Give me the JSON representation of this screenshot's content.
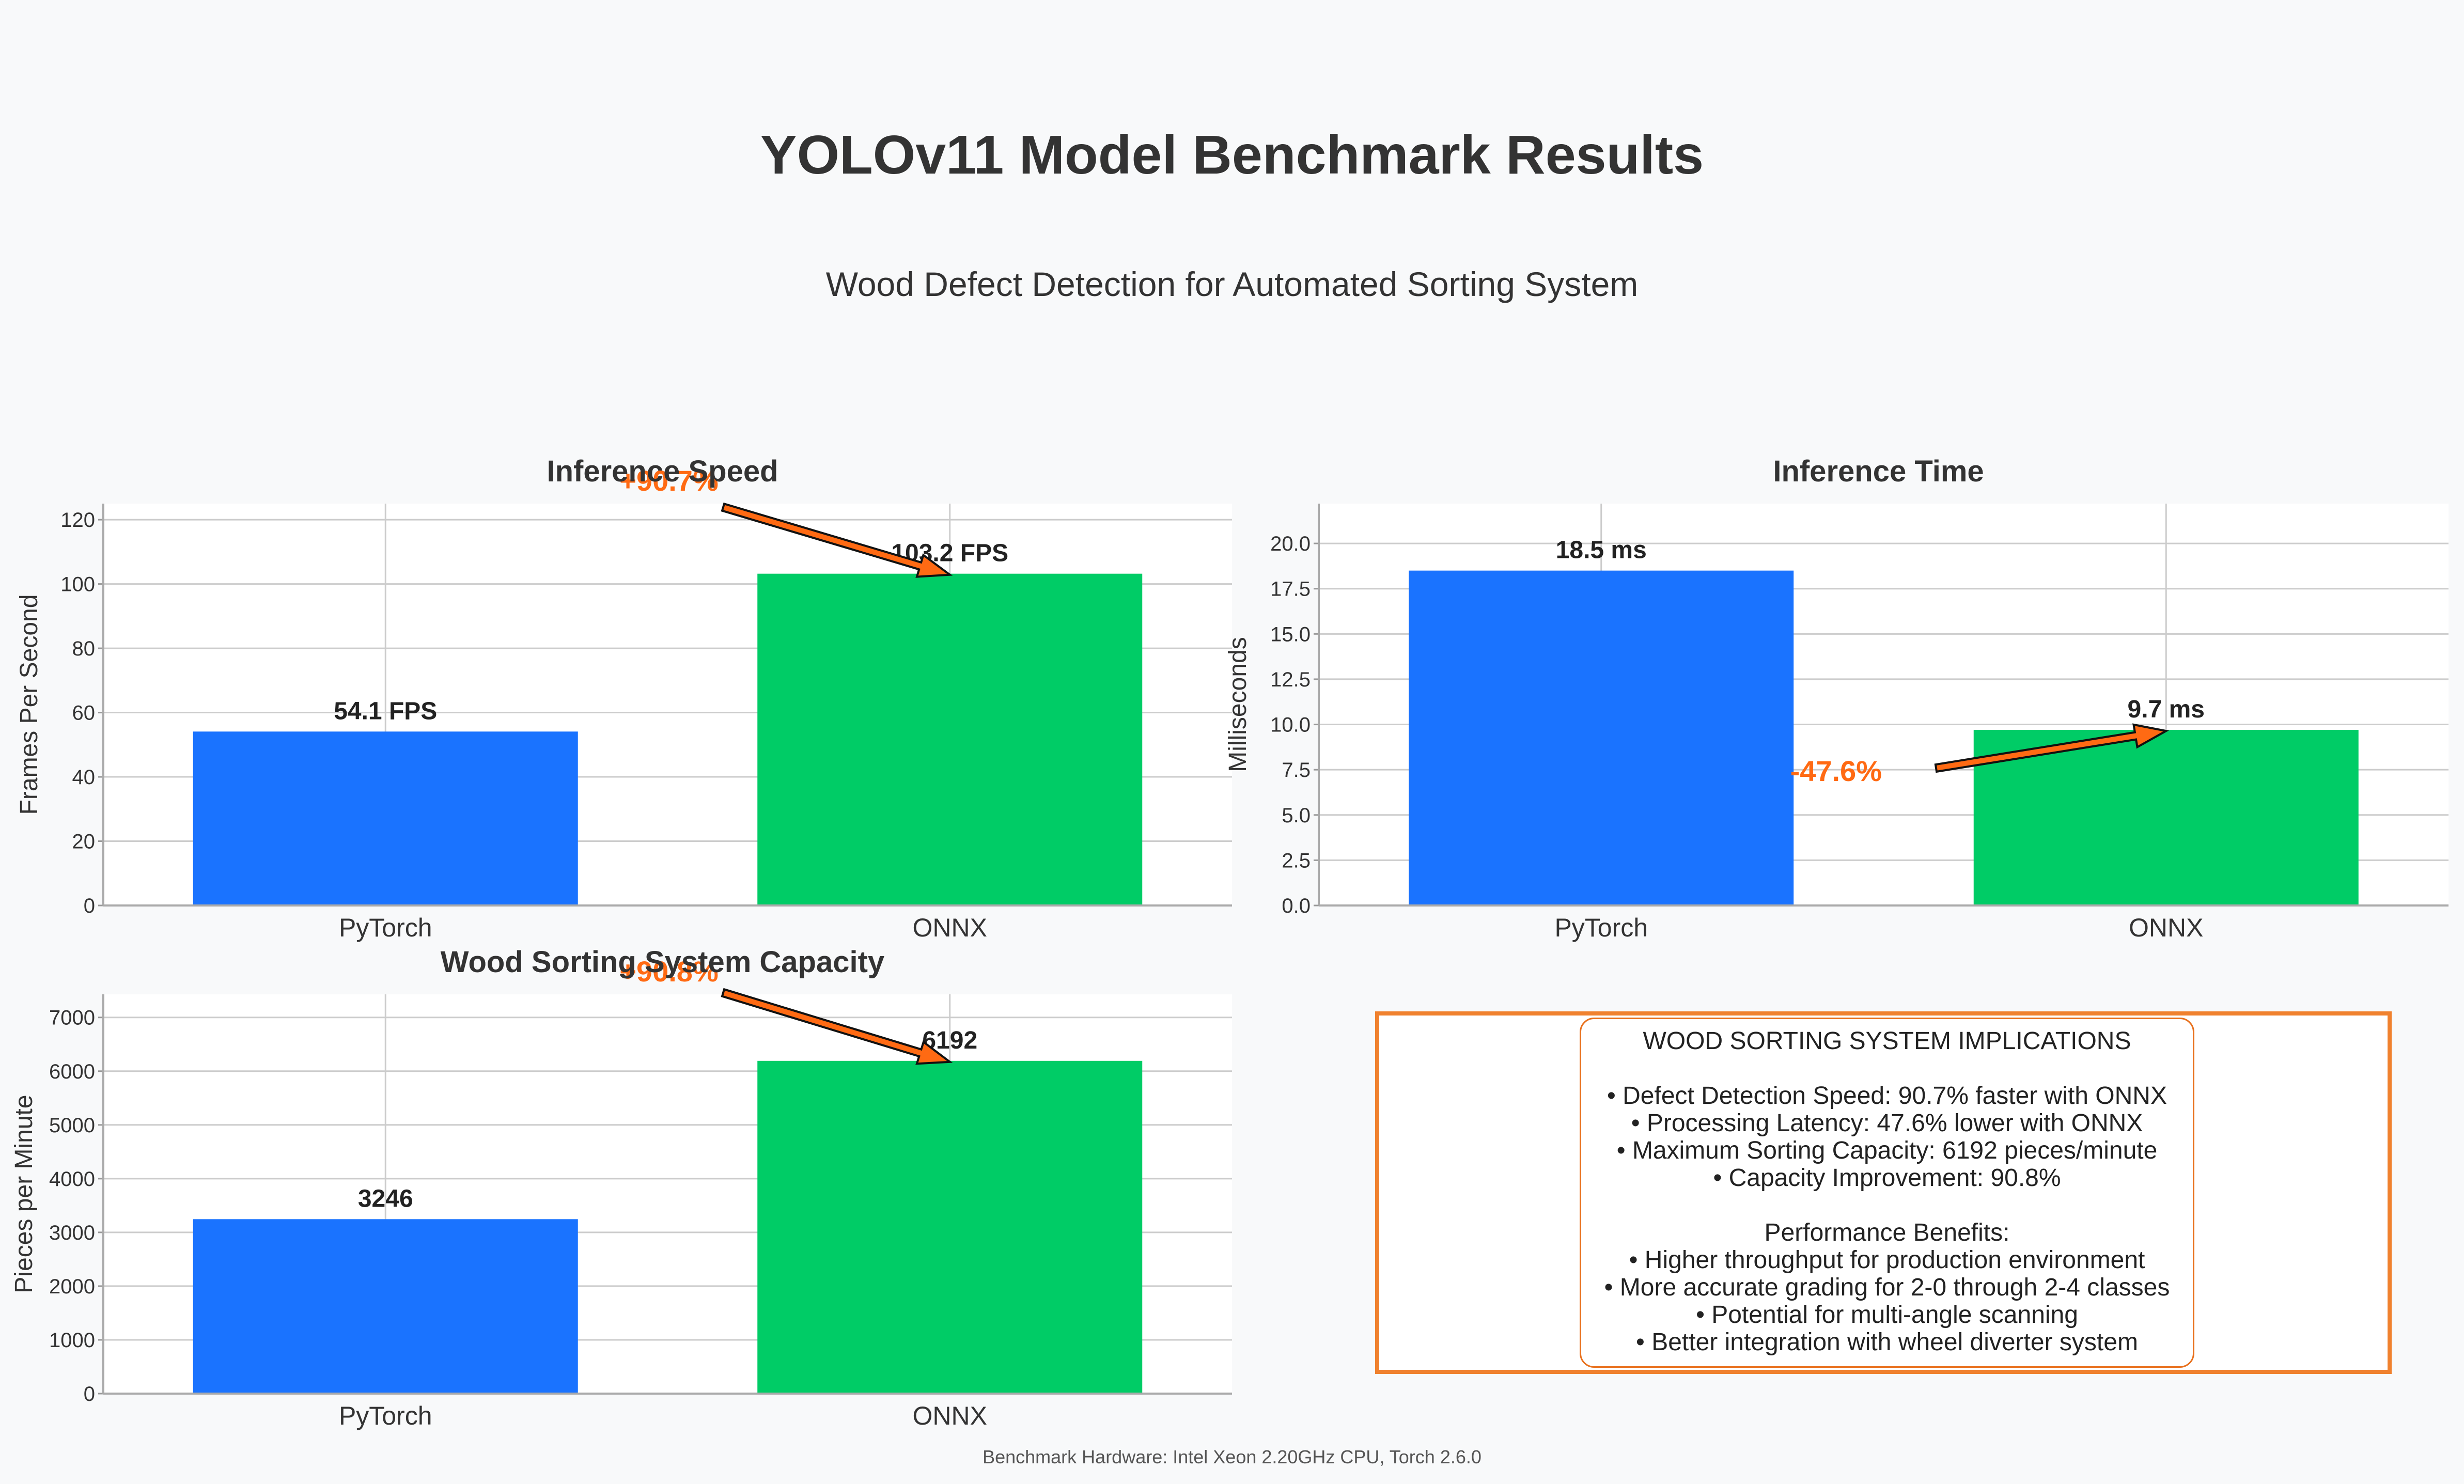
{
  "title": "YOLOv11 Model Benchmark Results",
  "subtitle": "Wood Defect Detection for Automated Sorting System",
  "footer": "Benchmark Hardware: Intel Xeon 2.20GHz CPU, Torch 2.6.0",
  "colors": {
    "pytorch": "#1a73ff",
    "onnx": "#00cc66",
    "annotation": "#ff6a13",
    "panel_border": "#f0812e",
    "background": "#f8f9fa"
  },
  "chart_data": [
    {
      "type": "bar",
      "title": "Inference Speed",
      "categories": [
        "PyTorch",
        "ONNX"
      ],
      "values": [
        54.1,
        103.2
      ],
      "value_labels": [
        "54.1 FPS",
        "103.2 FPS"
      ],
      "ylabel": "Frames Per Second",
      "ylim": [
        0,
        125
      ],
      "yticks": [
        0,
        20,
        40,
        60,
        80,
        100,
        120
      ],
      "annotation": {
        "text": "+90.7%",
        "arrow_to": "ONNX"
      },
      "grid": true
    },
    {
      "type": "bar",
      "title": "Inference Time",
      "categories": [
        "PyTorch",
        "ONNX"
      ],
      "values": [
        18.5,
        9.7
      ],
      "value_labels": [
        "18.5 ms",
        "9.7 ms"
      ],
      "ylabel": "Milliseconds",
      "ylim": [
        0,
        22.2
      ],
      "yticks": [
        0.0,
        2.5,
        5.0,
        7.5,
        10.0,
        12.5,
        15.0,
        17.5,
        20.0
      ],
      "annotation": {
        "text": "-47.6%",
        "arrow_to": "ONNX"
      },
      "grid": true
    },
    {
      "type": "bar",
      "title": "Wood Sorting System Capacity",
      "categories": [
        "PyTorch",
        "ONNX"
      ],
      "values": [
        3246,
        6192
      ],
      "value_labels": [
        "3246",
        "6192"
      ],
      "ylabel": "Pieces per Minute",
      "ylim": [
        0,
        7430
      ],
      "yticks": [
        0,
        1000,
        2000,
        3000,
        4000,
        5000,
        6000,
        7000
      ],
      "annotation": {
        "text": "+90.8%",
        "arrow_to": "ONNX"
      },
      "grid": true
    }
  ],
  "implications": {
    "heading": "WOOD SORTING SYSTEM IMPLICATIONS",
    "metrics": [
      "• Defect Detection Speed: 90.7% faster with ONNX",
      "• Processing Latency: 47.6% lower with ONNX",
      "• Maximum Sorting Capacity: 6192 pieces/minute",
      "• Capacity Improvement: 90.8%"
    ],
    "benefits_heading": "Performance Benefits:",
    "benefits": [
      "• Higher throughput for production environment",
      "• More accurate grading for 2-0 through 2-4 classes",
      "• Potential for multi-angle scanning",
      "• Better integration with wheel diverter system"
    ]
  }
}
